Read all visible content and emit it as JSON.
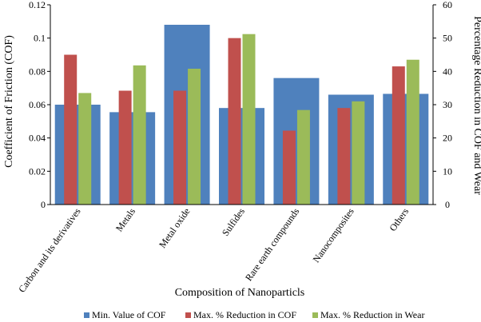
{
  "chart_data": {
    "type": "bar",
    "xlabel": "Composition of Nanoparticls",
    "ylabel_left": "Coefficient of Friction (COF)",
    "ylabel_right": "Percentage Reduction in COF and Wear",
    "categories": [
      "Carbon and its derivatives",
      "Metals",
      "Metal oxide",
      "Sulfides",
      "Rare earth compounds",
      "Nanocomposites",
      "Others"
    ],
    "y_left": {
      "min": 0,
      "max": 0.12,
      "ticks": [
        "0",
        "0.02",
        "0.04",
        "0.06",
        "0.08",
        "0.1",
        "0.12"
      ]
    },
    "y_right": {
      "min": 0,
      "max": 60,
      "ticks": [
        "0",
        "10",
        "20",
        "30",
        "40",
        "50",
        "60"
      ]
    },
    "background_series": {
      "name": "Min. Value of COF",
      "axis": "left",
      "color": "#4F81BD",
      "values": [
        0.06,
        0.0555,
        0.108,
        0.058,
        0.076,
        0.066,
        0.0665
      ]
    },
    "series": [
      {
        "name": "Max. % Reduction in COF",
        "axis": "right",
        "color": "#C0504D",
        "values": [
          45,
          34.2,
          34.2,
          50,
          22.2,
          29,
          41.5
        ]
      },
      {
        "name": "Max. % Reduction in Wear",
        "axis": "right",
        "color": "#9BBB59",
        "values": [
          33.5,
          41.8,
          40.8,
          51.2,
          28.4,
          31,
          43.5
        ]
      }
    ],
    "legend_placement": "bottom",
    "grid": false
  }
}
